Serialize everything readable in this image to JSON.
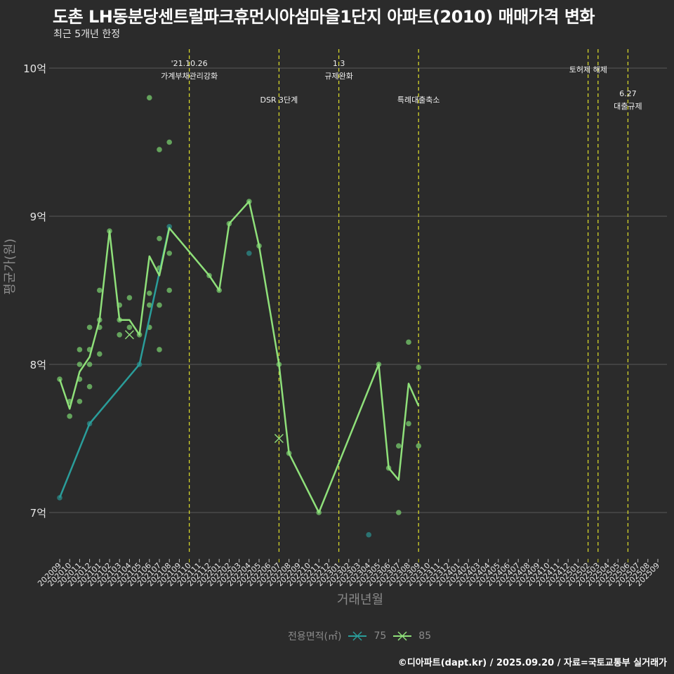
{
  "header": {
    "title": "도촌 LH동분당센트럴파크휴먼시아섬마을1단지 아파트(2010) 매매가격 변화",
    "subtitle": "최근 5개년 한정"
  },
  "axes": {
    "ylabel": "평균가(원)",
    "xlabel": "거래년월"
  },
  "legend": {
    "title": "전용면적(㎡)",
    "items": [
      {
        "label": "75",
        "color": "#2a9d9a"
      },
      {
        "label": "85",
        "color": "#8fe07a"
      }
    ]
  },
  "footer": {
    "credit": "©디아파트(dapt.kr) / 2025.09.20 / 자료=국토교통부 실거래가"
  },
  "colors": {
    "background": "#2b2b2b",
    "grid": "#5a5a5a",
    "series_75": "#2a9d9a",
    "series_85": "#8fe07a",
    "scatter_85": "#6fb865",
    "scatter_75": "#2b7b7a",
    "event_line": "#d4d42a"
  },
  "chart_data": {
    "type": "line",
    "title": "도촌 LH동분당센트럴파크휴먼시아섬마을1단지 아파트(2010) 매매가격 변화",
    "subtitle": "최근 5개년 한정",
    "xlabel": "거래년월",
    "ylabel": "평균가(원)",
    "ylim": [
      6.7,
      10.2
    ],
    "yticks": [
      {
        "value": 7,
        "label": "7억"
      },
      {
        "value": 8,
        "label": "8억"
      },
      {
        "value": 9,
        "label": "9억"
      },
      {
        "value": 10,
        "label": "10억"
      }
    ],
    "x": [
      "202009",
      "202010",
      "202011",
      "202012",
      "202101",
      "202102",
      "202103",
      "202104",
      "202105",
      "202106",
      "202107",
      "202108",
      "202109",
      "202110",
      "202111",
      "202112",
      "202201",
      "202202",
      "202203",
      "202204",
      "202205",
      "202206",
      "202207",
      "202208",
      "202209",
      "202210",
      "202211",
      "202212",
      "202301",
      "202302",
      "202303",
      "202304",
      "202305",
      "202306",
      "202307",
      "202308",
      "202309",
      "202310",
      "202311",
      "202312",
      "202401",
      "202402",
      "202403",
      "202404",
      "202405",
      "202406",
      "202407",
      "202408",
      "202409",
      "202410",
      "202411",
      "202412",
      "202501",
      "202502",
      "202503",
      "202504",
      "202505",
      "202506",
      "202507",
      "202508",
      "202509"
    ],
    "grid": true,
    "legend_position": "bottom",
    "series": [
      {
        "name": "75",
        "unit": "억",
        "points": [
          {
            "x": "202009",
            "y": 7.1
          },
          {
            "x": "202012",
            "y": 7.6
          },
          {
            "x": "202105",
            "y": 8.0
          },
          {
            "x": "202108",
            "y": 8.93
          }
        ]
      },
      {
        "name": "85",
        "unit": "억",
        "points": [
          {
            "x": "202009",
            "y": 7.9
          },
          {
            "x": "202010",
            "y": 7.7
          },
          {
            "x": "202011",
            "y": 7.95
          },
          {
            "x": "202012",
            "y": 8.05
          },
          {
            "x": "202101",
            "y": 8.3
          },
          {
            "x": "202102",
            "y": 8.9
          },
          {
            "x": "202103",
            "y": 8.3
          },
          {
            "x": "202104",
            "y": 8.3
          },
          {
            "x": "202105",
            "y": 8.2
          },
          {
            "x": "202106",
            "y": 8.73
          },
          {
            "x": "202107",
            "y": 8.6
          },
          {
            "x": "202108",
            "y": 8.92
          },
          {
            "x": "202112",
            "y": 8.6
          },
          {
            "x": "202201",
            "y": 8.5
          },
          {
            "x": "202202",
            "y": 8.95
          },
          {
            "x": "202204",
            "y": 9.1
          },
          {
            "x": "202205",
            "y": 8.8
          },
          {
            "x": "202207",
            "y": 8.0
          },
          {
            "x": "202208",
            "y": 7.4
          },
          {
            "x": "202211",
            "y": 7.0
          },
          {
            "x": "202305",
            "y": 8.0
          },
          {
            "x": "202306",
            "y": 7.3
          },
          {
            "x": "202307",
            "y": 7.22
          },
          {
            "x": "202308",
            "y": 7.87
          },
          {
            "x": "202309",
            "y": 7.72
          }
        ]
      }
    ],
    "scatter": {
      "85": [
        [
          "202009",
          7.9
        ],
        [
          "202010",
          7.75
        ],
        [
          "202010",
          7.65
        ],
        [
          "202011",
          8.1
        ],
        [
          "202011",
          8.0
        ],
        [
          "202011",
          7.9
        ],
        [
          "202011",
          7.75
        ],
        [
          "202012",
          8.25
        ],
        [
          "202012",
          8.1
        ],
        [
          "202012",
          8.0
        ],
        [
          "202012",
          7.85
        ],
        [
          "202101",
          8.5
        ],
        [
          "202101",
          8.3
        ],
        [
          "202101",
          8.25
        ],
        [
          "202101",
          8.07
        ],
        [
          "202102",
          8.9
        ],
        [
          "202103",
          8.4
        ],
        [
          "202103",
          8.3
        ],
        [
          "202103",
          8.2
        ],
        [
          "202104",
          8.45
        ],
        [
          "202104",
          8.25
        ],
        [
          "202105",
          8.2
        ],
        [
          "202106",
          9.8
        ],
        [
          "202106",
          8.48
        ],
        [
          "202106",
          8.4
        ],
        [
          "202106",
          8.25
        ],
        [
          "202107",
          9.45
        ],
        [
          "202107",
          8.85
        ],
        [
          "202107",
          8.65
        ],
        [
          "202107",
          8.4
        ],
        [
          "202107",
          8.1
        ],
        [
          "202108",
          9.5
        ],
        [
          "202108",
          8.75
        ],
        [
          "202108",
          8.5
        ],
        [
          "202112",
          8.6
        ],
        [
          "202201",
          8.5
        ],
        [
          "202202",
          8.95
        ],
        [
          "202204",
          9.1
        ],
        [
          "202205",
          8.8
        ],
        [
          "202207",
          8.0
        ],
        [
          "202208",
          7.4
        ],
        [
          "202211",
          7.0
        ],
        [
          "202305",
          8.0
        ],
        [
          "202306",
          7.3
        ],
        [
          "202307",
          7.45
        ],
        [
          "202307",
          7.0
        ],
        [
          "202308",
          8.15
        ],
        [
          "202308",
          7.6
        ],
        [
          "202309",
          7.98
        ],
        [
          "202309",
          7.45
        ]
      ],
      "75": [
        [
          "202009",
          7.1
        ],
        [
          "202012",
          7.6
        ],
        [
          "202105",
          8.0
        ],
        [
          "202108",
          8.93
        ],
        [
          "202204",
          8.75
        ],
        [
          "202304",
          6.85
        ]
      ]
    },
    "cross_markers": [
      {
        "series": "85",
        "x": "202104",
        "y": 8.2
      },
      {
        "series": "85",
        "x": "202207",
        "y": 7.5
      }
    ],
    "annotations": [
      {
        "x": "202110",
        "label_line1": "'21.10.26",
        "label_line2": "가계부채관리강화"
      },
      {
        "x": "202207",
        "label_line1": "",
        "label_line2": "DSR 3단계"
      },
      {
        "x": "202301",
        "label_line1": "1.3",
        "label_line2": "규제완화"
      },
      {
        "x": "202309",
        "label_line1": "",
        "label_line2": "특례대출축소"
      },
      {
        "x": "202502",
        "label_line1": "",
        "label_line2": ""
      },
      {
        "x": "202503",
        "label_line1": "",
        "label_line2": "토허제 해제"
      },
      {
        "x": "202506",
        "label_line1": "6.27",
        "label_line2": "대출규제"
      }
    ]
  }
}
